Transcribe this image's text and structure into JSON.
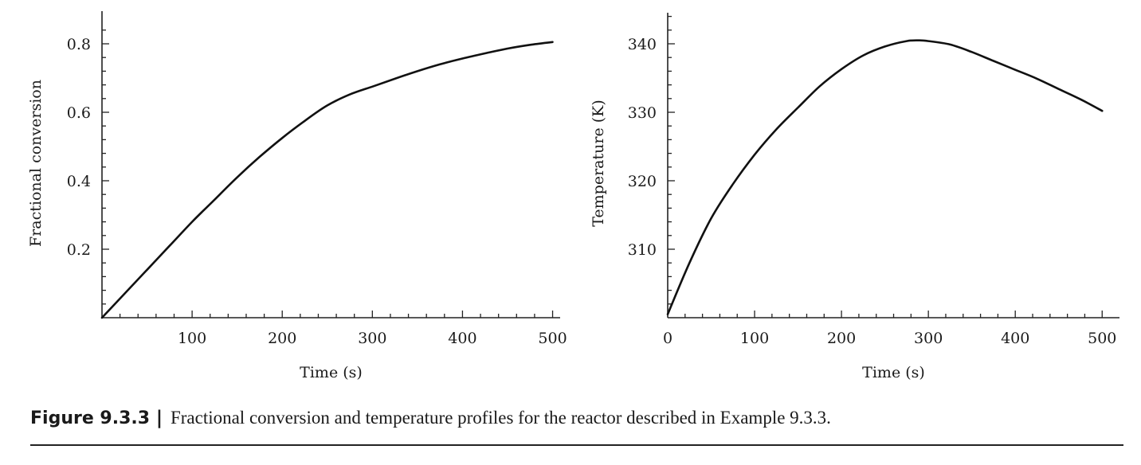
{
  "chart_data": [
    {
      "type": "line",
      "title": "",
      "xlabel": "Time (s)",
      "ylabel": "Fractional conversion",
      "xlim": [
        0,
        510
      ],
      "ylim": [
        0,
        0.87
      ],
      "xticks": [
        100,
        200,
        300,
        400,
        500
      ],
      "yticks": [
        0.2,
        0.4,
        0.6,
        0.8
      ],
      "xtick_labels": [
        "100",
        "200",
        "300",
        "400",
        "500"
      ],
      "ytick_labels": [
        "0.2",
        "0.4",
        "0.6",
        "0.8"
      ],
      "grid": false,
      "series": [
        {
          "x": [
            0,
            25,
            50,
            75,
            100,
            125,
            150,
            175,
            200,
            225,
            250,
            275,
            300,
            325,
            350,
            375,
            400,
            425,
            450,
            475,
            500
          ],
          "y": [
            0.0,
            0.07,
            0.14,
            0.21,
            0.28,
            0.345,
            0.41,
            0.47,
            0.525,
            0.575,
            0.62,
            0.652,
            0.675,
            0.698,
            0.72,
            0.74,
            0.757,
            0.772,
            0.786,
            0.797,
            0.805
          ]
        }
      ]
    },
    {
      "type": "line",
      "title": "",
      "xlabel": "Time (s)",
      "ylabel": "Temperature (K)",
      "xlim": [
        0,
        505
      ],
      "ylim": [
        300,
        345
      ],
      "xticks": [
        0,
        100,
        200,
        300,
        400,
        500
      ],
      "yticks": [
        310,
        320,
        330,
        340
      ],
      "xtick_labels": [
        "0",
        "100",
        "200",
        "300",
        "400",
        "500"
      ],
      "ytick_labels": [
        "310",
        "320",
        "330",
        "340"
      ],
      "grid": false,
      "series": [
        {
          "x": [
            0,
            25,
            50,
            75,
            100,
            125,
            150,
            175,
            200,
            225,
            250,
            275,
            290,
            300,
            325,
            350,
            375,
            400,
            425,
            450,
            475,
            500
          ],
          "y": [
            300.5,
            308.0,
            314.5,
            319.5,
            323.8,
            327.5,
            330.7,
            333.8,
            336.3,
            338.3,
            339.6,
            340.4,
            340.5,
            340.4,
            339.9,
            338.8,
            337.5,
            336.2,
            334.9,
            333.4,
            331.9,
            330.2
          ]
        }
      ]
    }
  ],
  "caption": {
    "label": "Figure 9.3.3",
    "separator": "|",
    "text": "Fractional conversion and temperature profiles for the reactor described in Example 9.3.3."
  }
}
